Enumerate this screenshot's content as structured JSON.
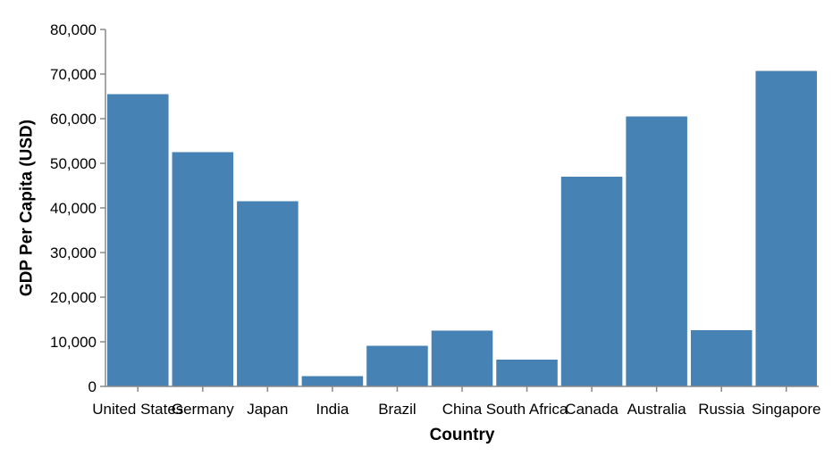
{
  "colors": {
    "bar": "#4682b4",
    "axis": "#888888",
    "text": "#000000",
    "background": "#ffffff"
  },
  "chart_data": {
    "type": "bar",
    "title": "",
    "xlabel": "Country",
    "ylabel": "GDP Per Capita (USD)",
    "categories": [
      "United States",
      "Germany",
      "Japan",
      "India",
      "Brazil",
      "China",
      "South Africa",
      "Canada",
      "Australia",
      "Russia",
      "Singapore"
    ],
    "values": [
      65500,
      52500,
      41500,
      2300,
      9100,
      12500,
      6000,
      47000,
      60500,
      12600,
      70700
    ],
    "ylim": [
      0,
      80000
    ],
    "yticks": [
      0,
      10000,
      20000,
      30000,
      40000,
      50000,
      60000,
      70000,
      80000
    ],
    "ytick_labels": [
      "0",
      "10,000",
      "20,000",
      "30,000",
      "40,000",
      "50,000",
      "60,000",
      "70,000",
      "80,000"
    ],
    "grid": false,
    "legend": "none"
  }
}
